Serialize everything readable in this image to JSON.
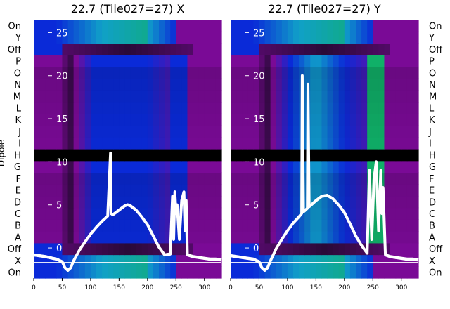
{
  "chart_data": [
    {
      "type": "heatmap",
      "title": "22.7 (Tile027=27) X",
      "ylabel": "Dipole",
      "xlim": [
        0,
        330
      ],
      "xticks": [
        0,
        50,
        100,
        150,
        200,
        250,
        300
      ],
      "ytick_overlay": [
        0,
        5,
        10,
        15,
        20,
        25
      ],
      "ytick_overlay_labels": [
        "0",
        "5",
        "10",
        "15",
        "20",
        "25"
      ],
      "ytick_overlay_range": [
        -3.5,
        26.5
      ],
      "row_labels_bottom_to_top": [
        "On",
        "X",
        "Off",
        "A",
        "B",
        "C",
        "D",
        "E",
        "F",
        "G",
        "H",
        "I",
        "J",
        "K",
        "L",
        "M",
        "N",
        "O",
        "P",
        "Off",
        "Y",
        "On"
      ],
      "dead_rows": [
        "H"
      ],
      "horizontal_line_y": -1.7,
      "series": [
        {
          "x": [
            0,
            20,
            40,
            50,
            55,
            60,
            65,
            70,
            80,
            90,
            100,
            110,
            120,
            130,
            135,
            136,
            138,
            140,
            150,
            160,
            165,
            170,
            180,
            190,
            200,
            210,
            220,
            230,
            240,
            244,
            246,
            248,
            250,
            252,
            256,
            260,
            264,
            266,
            268,
            270,
            280,
            290,
            300,
            310,
            320,
            330
          ],
          "y": [
            -0.8,
            -1.0,
            -1.3,
            -1.6,
            -2.3,
            -2.6,
            -2.3,
            -1.5,
            -0.3,
            0.7,
            1.6,
            2.4,
            3.1,
            3.7,
            11.0,
            4.0,
            3.9,
            3.9,
            4.4,
            4.9,
            5.0,
            4.9,
            4.4,
            3.6,
            2.7,
            1.4,
            0.1,
            -0.8,
            -0.7,
            6.0,
            1.0,
            6.5,
            4.0,
            5.0,
            1.0,
            5.5,
            6.5,
            2.0,
            5.5,
            -0.8,
            -1.0,
            -1.1,
            -1.2,
            -1.3,
            -1.3,
            -1.4
          ]
        }
      ]
    },
    {
      "type": "heatmap",
      "title": "22.7 (Tile027=27) Y",
      "xlim": [
        0,
        330
      ],
      "xticks": [
        0,
        50,
        100,
        150,
        200,
        250,
        300
      ],
      "ytick_overlay": [
        25,
        20,
        15,
        10,
        5,
        0
      ],
      "ytick_overlay_labels": [
        "25",
        "20",
        "15",
        "10",
        "5",
        "0"
      ],
      "row_labels_bottom_to_top": [
        "On",
        "X",
        "Off",
        "A",
        "B",
        "C",
        "D",
        "E",
        "F",
        "G",
        "H",
        "I",
        "J",
        "K",
        "L",
        "M",
        "N",
        "O",
        "P",
        "Off",
        "Y",
        "On"
      ],
      "dead_rows": [
        "H"
      ],
      "horizontal_line_y": -1.7,
      "series": [
        {
          "x": [
            0,
            20,
            40,
            50,
            55,
            60,
            65,
            70,
            80,
            90,
            100,
            110,
            120,
            125,
            126,
            128,
            130,
            135,
            136,
            138,
            140,
            150,
            160,
            170,
            180,
            190,
            200,
            210,
            220,
            230,
            240,
            244,
            248,
            252,
            256,
            260,
            264,
            266,
            268,
            272,
            280,
            290,
            300,
            310,
            320,
            330
          ],
          "y": [
            -0.9,
            -1.1,
            -1.3,
            -1.6,
            -2.3,
            -2.6,
            -2.3,
            -1.5,
            -0.1,
            1.0,
            2.0,
            2.9,
            3.6,
            4.0,
            20.0,
            4.2,
            4.3,
            4.6,
            19.0,
            4.8,
            4.9,
            5.5,
            6.0,
            6.1,
            5.7,
            5.0,
            4.1,
            2.8,
            1.4,
            0.3,
            -0.6,
            9.0,
            1.0,
            8.0,
            10.0,
            2.0,
            9.0,
            4.0,
            7.0,
            -0.8,
            -1.0,
            -1.1,
            -1.2,
            -1.3,
            -1.3,
            -1.4
          ]
        }
      ]
    }
  ],
  "colors": {
    "line": "#ffffff",
    "dead_row": "#000000",
    "purple": "#7a0a96",
    "dark": "#2a0a38",
    "blue": "#0a2ad8",
    "cyan": "#10a0c8",
    "green": "#10b068"
  }
}
